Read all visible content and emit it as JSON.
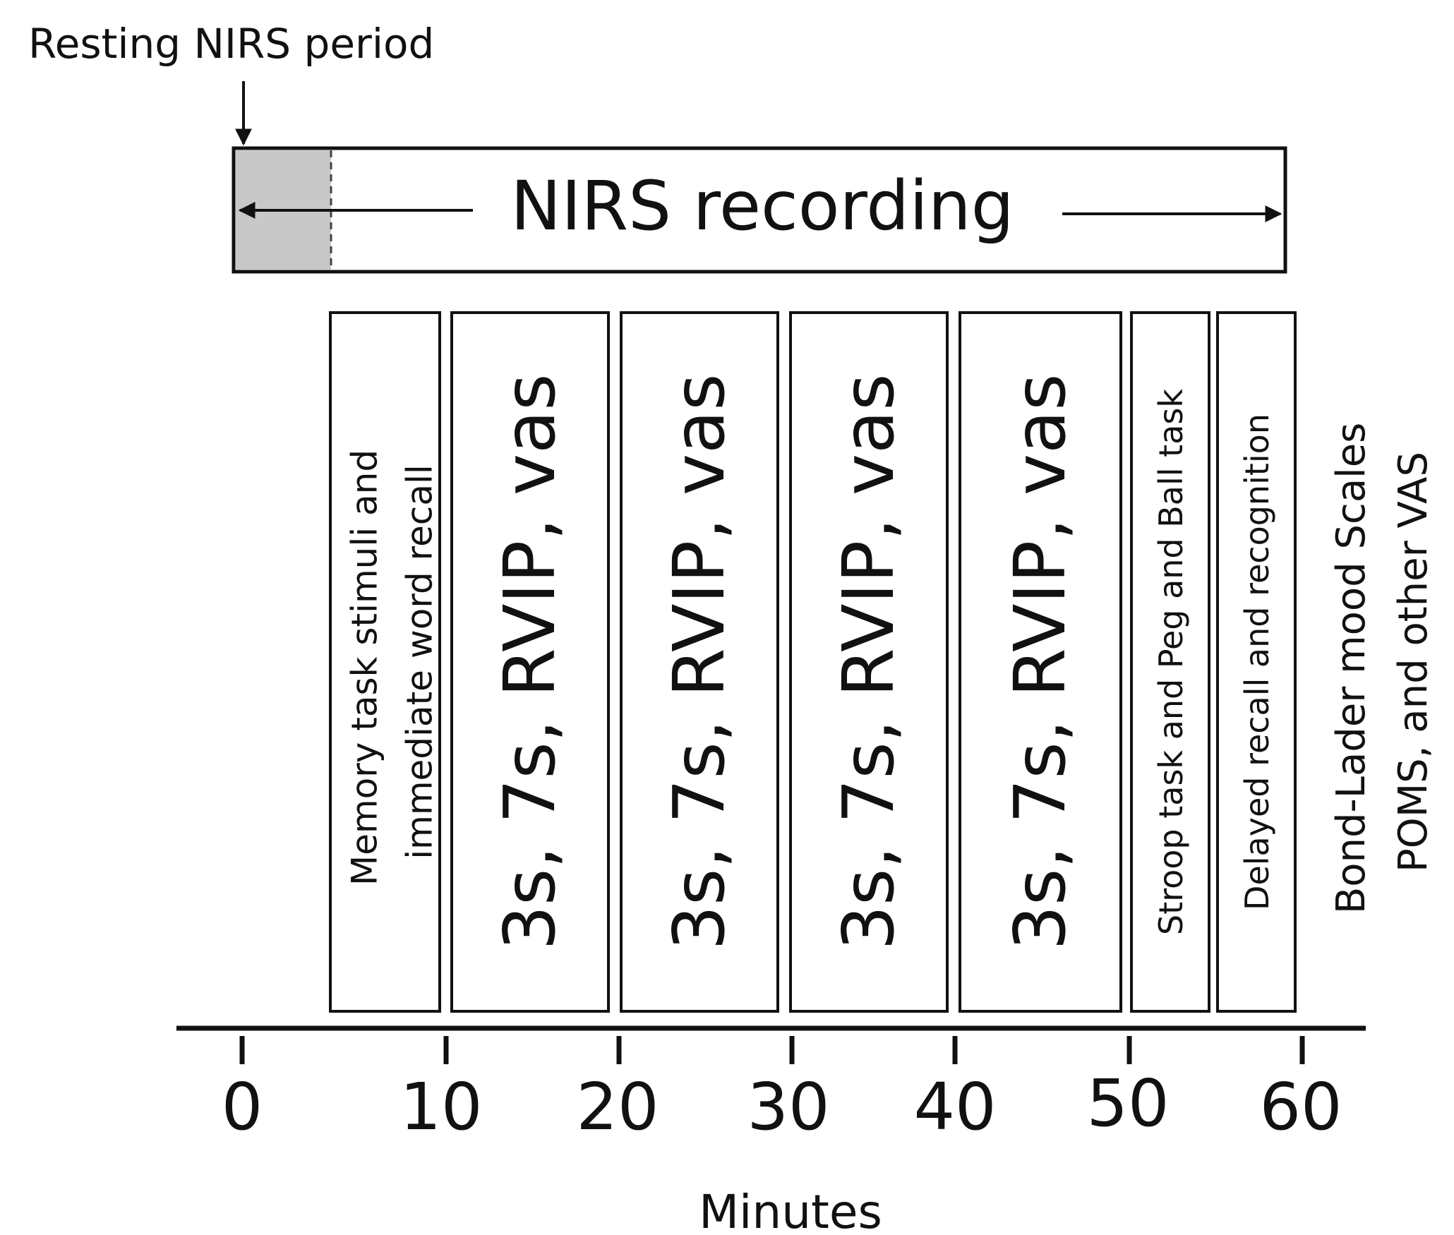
{
  "resting_label": "Resting NIRS period",
  "recording_label": "NIRS recording",
  "tasks": [
    {
      "lines": [
        "Memory task  stimuli and",
        "immediate word recall"
      ]
    },
    {
      "lines": [
        "3s, 7s, RVIP, vas"
      ]
    },
    {
      "lines": [
        "3s, 7s, RVIP, vas"
      ]
    },
    {
      "lines": [
        "3s, 7s, RVIP, vas"
      ]
    },
    {
      "lines": [
        "3s, 7s, RVIP, vas"
      ]
    },
    {
      "lines": [
        "Stroop task and Peg and Ball task"
      ]
    },
    {
      "lines": [
        "Delayed recall and recognition"
      ]
    }
  ],
  "post_labels": [
    "Bond-Lader mood Scales",
    "POMS, and other VAS"
  ],
  "axis": {
    "ticks": [
      "0",
      "10",
      "20",
      "30",
      "40",
      "50",
      "60"
    ],
    "title": "Minutes"
  },
  "colors": {
    "resting_fill": "#c8c8c8",
    "stroke": "#111111"
  }
}
